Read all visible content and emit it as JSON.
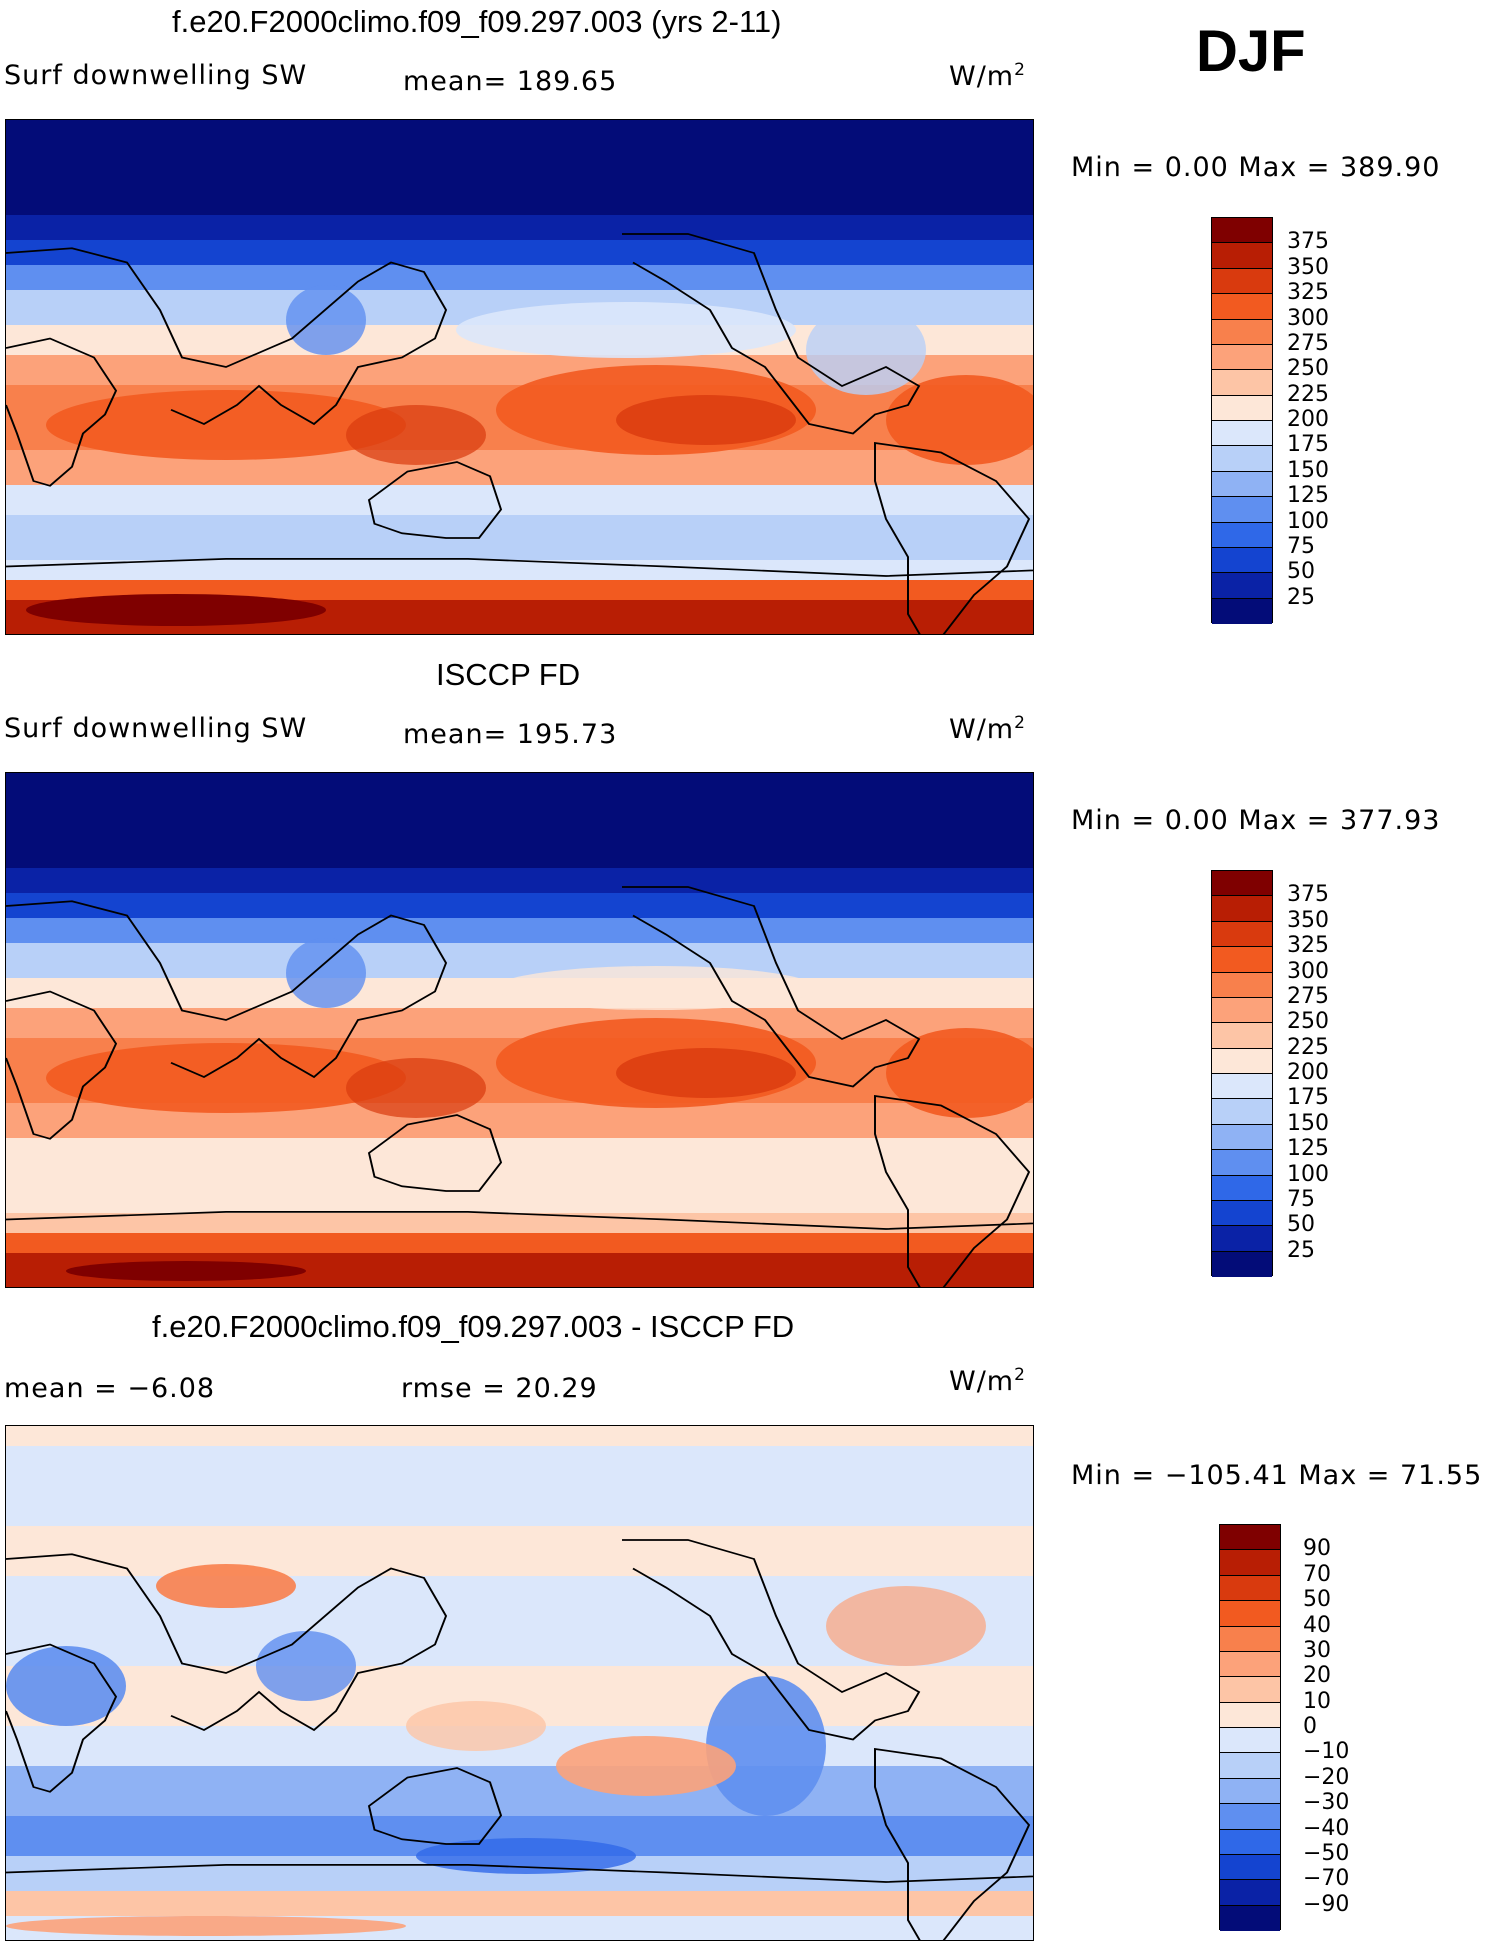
{
  "season": "DJF",
  "colors": {
    "levels15": [
      "#08006a",
      "#0a1aa0",
      "#0d3ad0",
      "#1e5ee6",
      "#3b7ef0",
      "#6a9ef5",
      "#9dbdf7",
      "#c8daf8",
      "#e6efff",
      "#fff1e0",
      "#fdd3bb",
      "#fcae8a",
      "#f8865e",
      "#ef5a30",
      "#d23412",
      "#8e0a04"
    ]
  },
  "panels": [
    {
      "title": "f.e20.F2000climo.f09_f09.297.003 (yrs 2-11)",
      "left_label": "Surf  downwelling  SW",
      "mid_label": "mean=  189.65",
      "unit": "W/m",
      "unit_sup": "2",
      "minmax": "Min  =      0.00  Max  =  389.90",
      "colorbar_labels": [
        "375",
        "350",
        "325",
        "300",
        "275",
        "250",
        "225",
        "200",
        "175",
        "150",
        "125",
        "100",
        "75",
        "50",
        "25"
      ],
      "colorbar_colors": [
        "#7f0000",
        "#b81e04",
        "#d93a0e",
        "#f25a20",
        "#f8804c",
        "#fca27a",
        "#fdc5a6",
        "#fde7d8",
        "#dbe7fb",
        "#b8d0f8",
        "#8fb2f4",
        "#5f8ff0",
        "#2f68e8",
        "#1444d0",
        "#0a22a6",
        "#030c78"
      ],
      "fields": "model"
    },
    {
      "title": "ISCCP FD",
      "left_label": "Surf  downwelling  SW",
      "mid_label": "mean=  195.73",
      "unit": "W/m",
      "unit_sup": "2",
      "minmax": "Min  =      0.00  Max  =  377.93",
      "colorbar_labels": [
        "375",
        "350",
        "325",
        "300",
        "275",
        "250",
        "225",
        "200",
        "175",
        "150",
        "125",
        "100",
        "75",
        "50",
        "25"
      ],
      "colorbar_colors": [
        "#7f0000",
        "#b81e04",
        "#d93a0e",
        "#f25a20",
        "#f8804c",
        "#fca27a",
        "#fdc5a6",
        "#fde7d8",
        "#dbe7fb",
        "#b8d0f8",
        "#8fb2f4",
        "#5f8ff0",
        "#2f68e8",
        "#1444d0",
        "#0a22a6",
        "#030c78"
      ],
      "fields": "obs"
    },
    {
      "title": "f.e20.F2000climo.f09_f09.297.003 - ISCCP FD",
      "left_label": "mean  =    −6.08",
      "mid_label": "rmse  =    20.29",
      "unit": "W/m",
      "unit_sup": "2",
      "minmax": "Min  = −105.41  Max  =    71.55",
      "colorbar_labels": [
        "90",
        "70",
        "50",
        "40",
        "30",
        "20",
        "10",
        "0",
        "−10",
        "−20",
        "−30",
        "−40",
        "−50",
        "−70",
        "−90"
      ],
      "colorbar_colors": [
        "#7f0000",
        "#b81e04",
        "#d93a0e",
        "#f25a20",
        "#f8804c",
        "#fca27a",
        "#fdc5a6",
        "#fde7d8",
        "#dbe7fb",
        "#b8d0f8",
        "#8fb2f4",
        "#5f8ff0",
        "#2f68e8",
        "#1444d0",
        "#0a22a6",
        "#030c78"
      ],
      "fields": "diff"
    }
  ]
}
